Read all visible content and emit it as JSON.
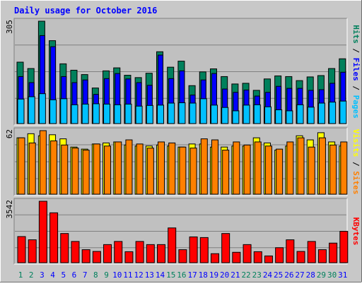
{
  "title": "Daily usage for October 2016",
  "colors": {
    "background": "#c8c8c8",
    "plot_bg": "#c0c0c0",
    "frame_light": "#ffffff",
    "frame_dark": "#6e6e6e",
    "title": "#0000ff",
    "hits": "#00805c",
    "files": "#0000ff",
    "pages": "#00c0ff",
    "visits": "#ffff00",
    "sites": "#ff8000",
    "kbytes": "#ff0000",
    "weekend_label": "#00805c",
    "weekday_label": "#0000ff"
  },
  "chart_data": [
    {
      "type": "bar",
      "panel": "hits-files-pages",
      "max_label": "305",
      "ylim": [
        0,
        305
      ],
      "series_labels": [
        "Pages",
        "Files",
        "Hits"
      ],
      "categories": [
        "1",
        "2",
        "3",
        "4",
        "5",
        "6",
        "7",
        "8",
        "9",
        "10",
        "11",
        "12",
        "13",
        "14",
        "15",
        "16",
        "17",
        "18",
        "19",
        "20",
        "21",
        "22",
        "23",
        "24",
        "25",
        "26",
        "27",
        "28",
        "29",
        "30",
        "31"
      ],
      "weekend_days": [
        "1",
        "2",
        "8",
        "9",
        "15",
        "16",
        "22",
        "23",
        "29",
        "30"
      ],
      "series": [
        {
          "name": "Hits",
          "values": [
            183,
            164,
            305,
            247,
            178,
            159,
            146,
            106,
            157,
            166,
            144,
            137,
            150,
            214,
            168,
            186,
            113,
            154,
            163,
            140,
            118,
            120,
            99,
            133,
            142,
            140,
            128,
            139,
            143,
            164,
            193
          ]
        },
        {
          "name": "Files",
          "values": [
            140,
            122,
            262,
            229,
            140,
            122,
            130,
            87,
            134,
            149,
            133,
            122,
            114,
            204,
            134,
            157,
            85,
            130,
            149,
            103,
            93,
            100,
            82,
            93,
            111,
            105,
            105,
            99,
            101,
            120,
            153
          ]
        },
        {
          "name": "Pages",
          "values": [
            73,
            80,
            89,
            71,
            74,
            56,
            58,
            59,
            58,
            56,
            58,
            52,
            54,
            55,
            61,
            62,
            61,
            74,
            55,
            48,
            38,
            55,
            56,
            50,
            41,
            38,
            56,
            49,
            61,
            64,
            67
          ]
        }
      ]
    },
    {
      "type": "bar",
      "panel": "visits-sites",
      "max_label": "62",
      "ylim": [
        0,
        62
      ],
      "series_labels": [
        "Sites",
        "Visits"
      ],
      "categories": [
        "1",
        "2",
        "3",
        "4",
        "5",
        "6",
        "7",
        "8",
        "9",
        "10",
        "11",
        "12",
        "13",
        "14",
        "15",
        "16",
        "17",
        "18",
        "19",
        "20",
        "21",
        "22",
        "23",
        "24",
        "25",
        "26",
        "27",
        "28",
        "29",
        "30",
        "31"
      ],
      "series": [
        {
          "name": "Visits",
          "values": [
            55,
            59,
            57,
            58,
            54,
            46,
            44,
            49,
            50,
            51,
            48,
            47,
            47,
            48,
            47,
            46,
            49,
            49,
            46,
            46,
            47,
            47,
            55,
            50,
            43,
            47,
            57,
            53,
            60,
            51,
            47
          ]
        },
        {
          "name": "Sites",
          "values": [
            55,
            50,
            62,
            52,
            48,
            45,
            43,
            49,
            47,
            51,
            53,
            49,
            45,
            51,
            50,
            46,
            45,
            54,
            53,
            43,
            51,
            48,
            51,
            47,
            44,
            51,
            55,
            46,
            55,
            48,
            51
          ]
        }
      ]
    },
    {
      "type": "bar",
      "panel": "kbytes",
      "max_label": "3542",
      "ylim": [
        0,
        3542
      ],
      "series_labels": [
        "KBytes"
      ],
      "categories": [
        "1",
        "2",
        "3",
        "4",
        "5",
        "6",
        "7",
        "8",
        "9",
        "10",
        "11",
        "12",
        "13",
        "14",
        "15",
        "16",
        "17",
        "18",
        "19",
        "20",
        "21",
        "22",
        "23",
        "24",
        "25",
        "26",
        "27",
        "28",
        "29",
        "30",
        "31"
      ],
      "series": [
        {
          "name": "KBytes",
          "values": [
            1507,
            1320,
            3542,
            2876,
            1683,
            1225,
            750,
            650,
            1044,
            1225,
            634,
            1225,
            1044,
            1044,
            2005,
            750,
            1487,
            1450,
            520,
            1683,
            600,
            1044,
            634,
            390,
            865,
            1320,
            650,
            1225,
            750,
            1130,
            1808
          ]
        }
      ]
    }
  ]
}
